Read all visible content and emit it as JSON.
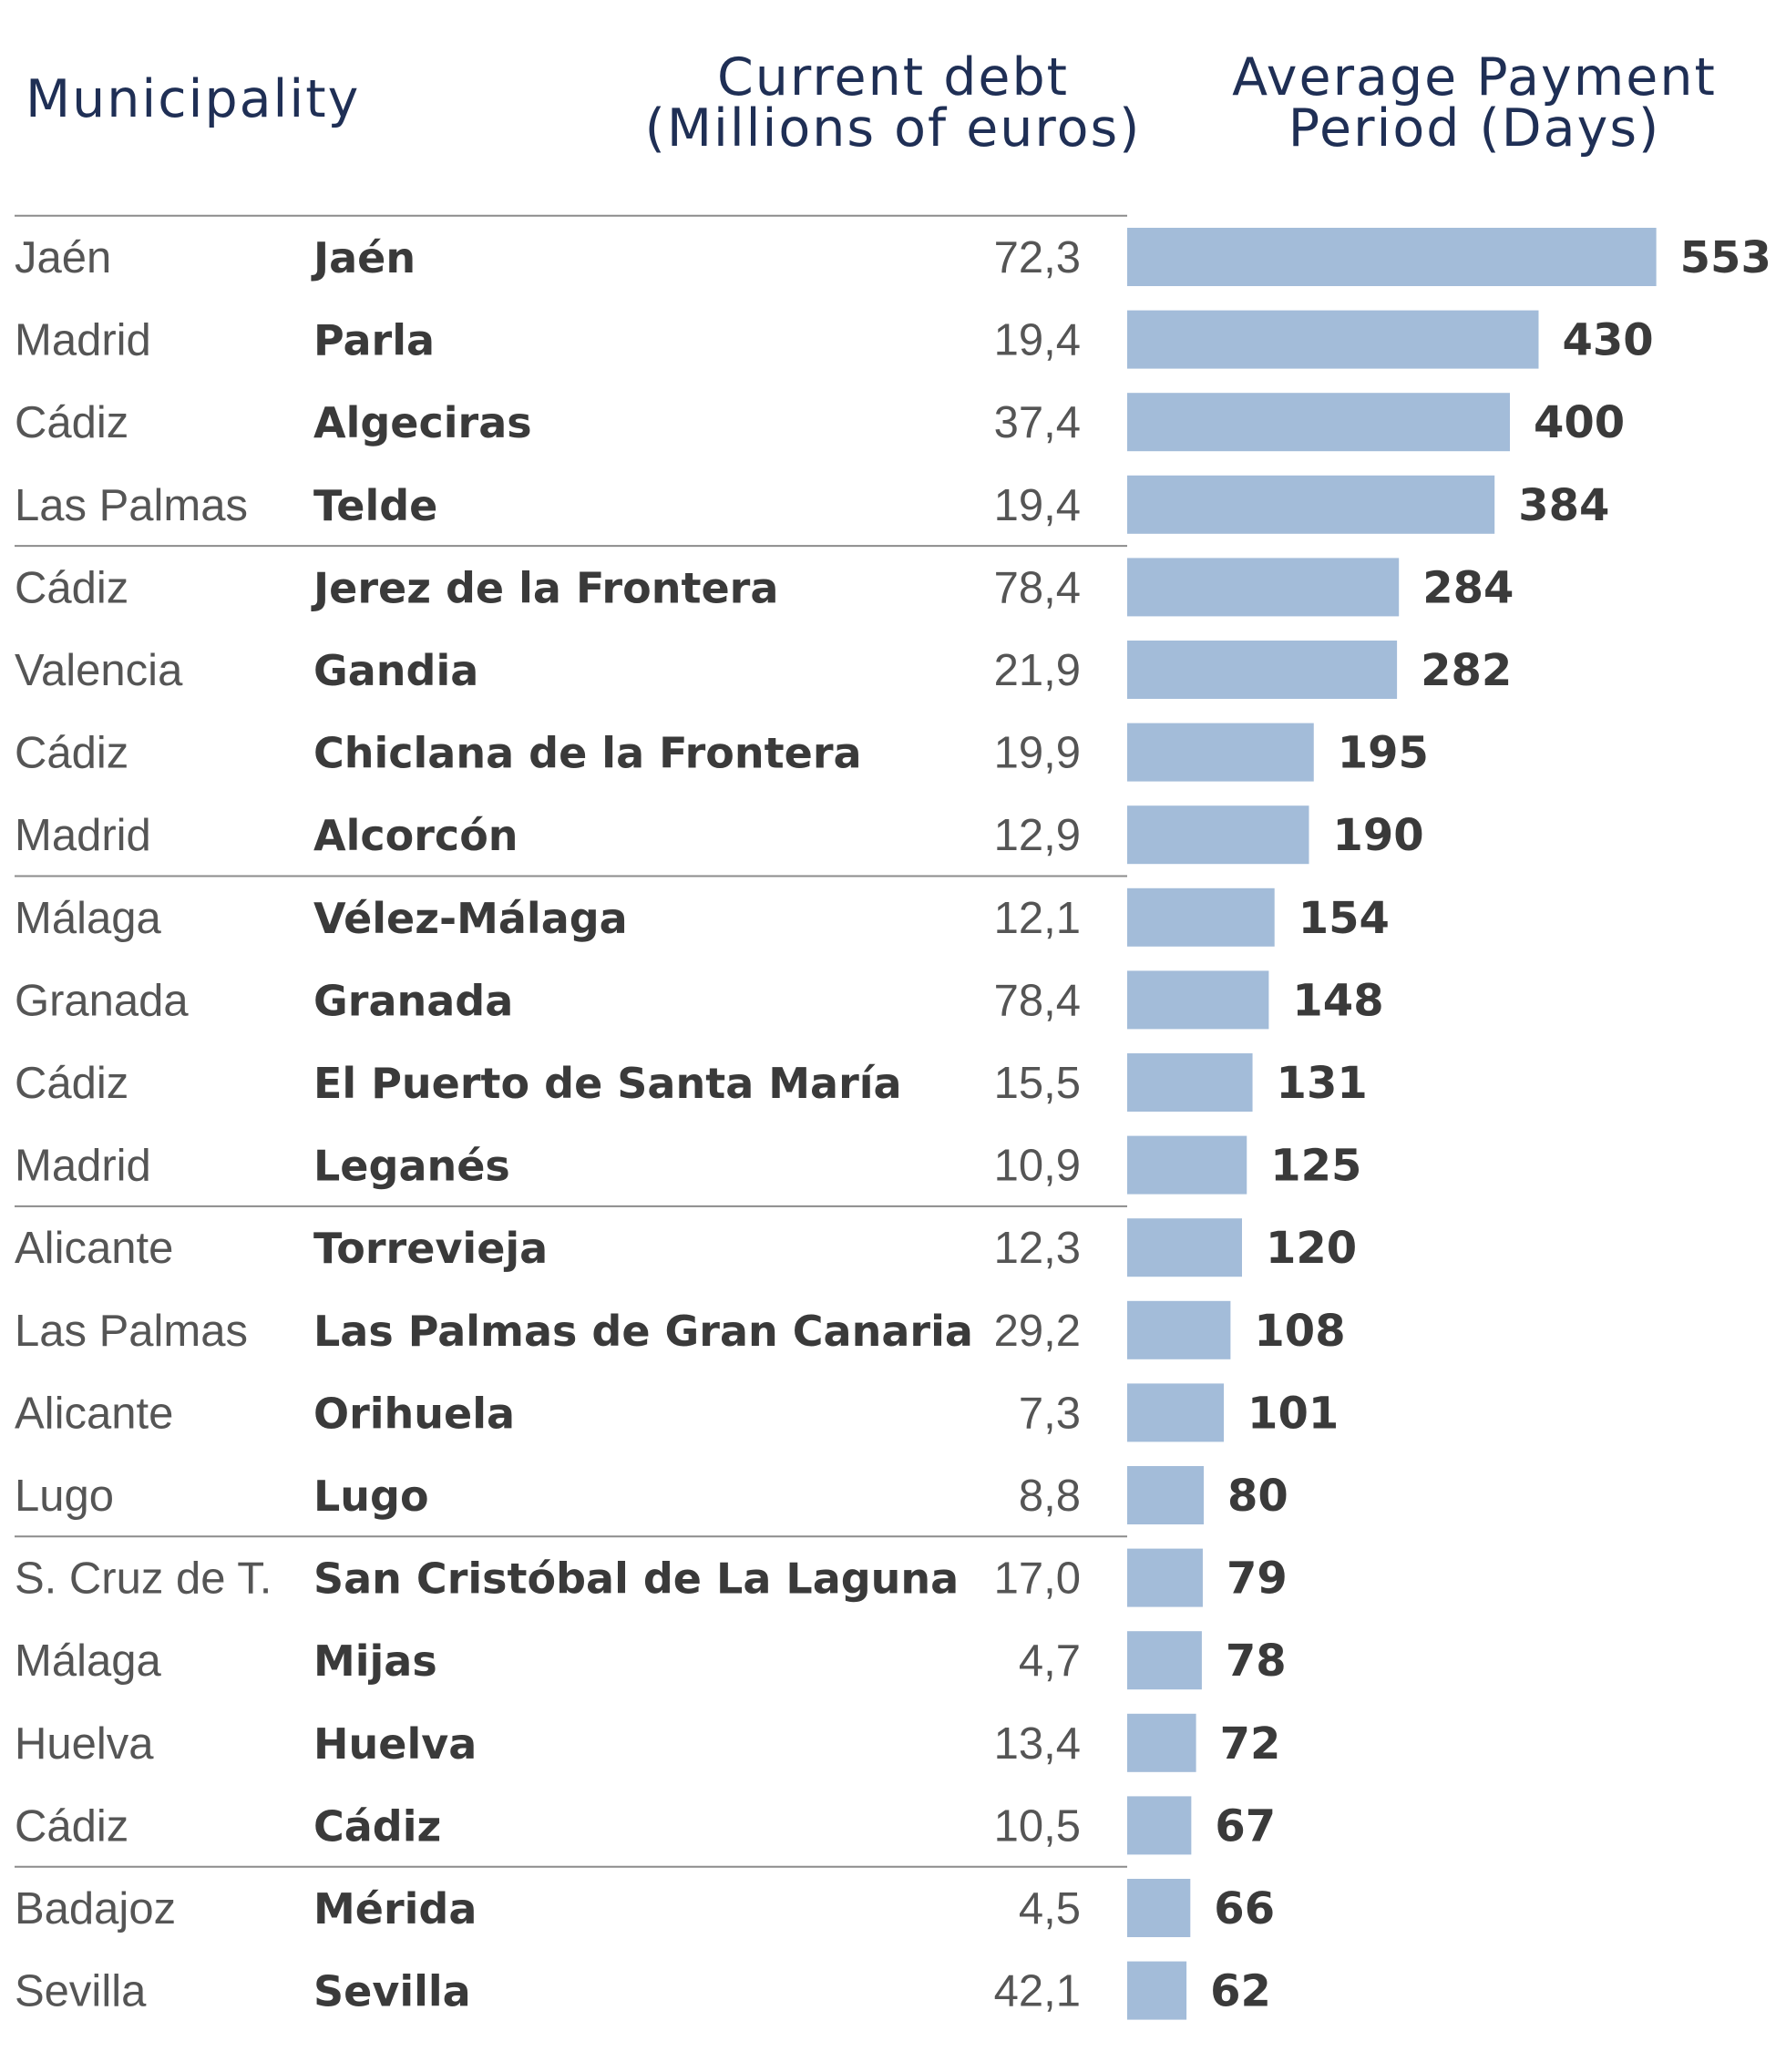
{
  "header": {
    "municipality": "Municipality",
    "debt_line1": "Current debt",
    "debt_line2": "(Millions of euros)",
    "period_line1": "Average Payment",
    "period_line2": "Period (Days)"
  },
  "colors": {
    "bar": "#a3bcd9",
    "header_text": "#1f2f55"
  },
  "chart_data": {
    "type": "bar",
    "orientation": "horizontal",
    "rows": [
      {
        "province": "Jaén",
        "municipality": "Jaén",
        "debt": "72,3",
        "days": 553
      },
      {
        "province": "Madrid",
        "municipality": "Parla",
        "debt": "19,4",
        "days": 430
      },
      {
        "province": "Cádiz",
        "municipality": "Algeciras",
        "debt": "37,4",
        "days": 400
      },
      {
        "province": "Las Palmas",
        "municipality": "Telde",
        "debt": "19,4",
        "days": 384
      },
      {
        "province": "Cádiz",
        "municipality": "Jerez de la Frontera",
        "debt": "78,4",
        "days": 284
      },
      {
        "province": "Valencia",
        "municipality": "Gandia",
        "debt": "21,9",
        "days": 282
      },
      {
        "province": "Cádiz",
        "municipality": "Chiclana de la Frontera",
        "debt": "19,9",
        "days": 195
      },
      {
        "province": "Madrid",
        "municipality": "Alcorcón",
        "debt": "12,9",
        "days": 190
      },
      {
        "province": "Málaga",
        "municipality": "Vélez-Málaga",
        "debt": "12,1",
        "days": 154
      },
      {
        "province": "Granada",
        "municipality": "Granada",
        "debt": "78,4",
        "days": 148
      },
      {
        "province": "Cádiz",
        "municipality": "El Puerto de Santa María",
        "debt": "15,5",
        "days": 131
      },
      {
        "province": "Madrid",
        "municipality": "Leganés",
        "debt": "10,9",
        "days": 125
      },
      {
        "province": "Alicante",
        "municipality": "Torrevieja",
        "debt": "12,3",
        "days": 120
      },
      {
        "province": "Las Palmas",
        "municipality": "Las Palmas de Gran Canaria",
        "debt": "29,2",
        "days": 108
      },
      {
        "province": "Alicante",
        "municipality": "Orihuela",
        "debt": "7,3",
        "days": 101
      },
      {
        "province": "Lugo",
        "municipality": "Lugo",
        "debt": "8,8",
        "days": 80
      },
      {
        "province": "S. Cruz de T.",
        "municipality": "San Cristóbal de La Laguna",
        "debt": "17,0",
        "days": 79
      },
      {
        "province": "Málaga",
        "municipality": "Mijas",
        "debt": "4,7",
        "days": 78
      },
      {
        "province": "Huelva",
        "municipality": "Huelva",
        "debt": "13,4",
        "days": 72
      },
      {
        "province": "Cádiz",
        "municipality": "Cádiz",
        "debt": "10,5",
        "days": 67
      },
      {
        "province": "Badajoz",
        "municipality": "Mérida",
        "debt": "4,5",
        "days": 66
      },
      {
        "province": "Sevilla",
        "municipality": "Sevilla",
        "debt": "42,1",
        "days": 62
      }
    ]
  }
}
